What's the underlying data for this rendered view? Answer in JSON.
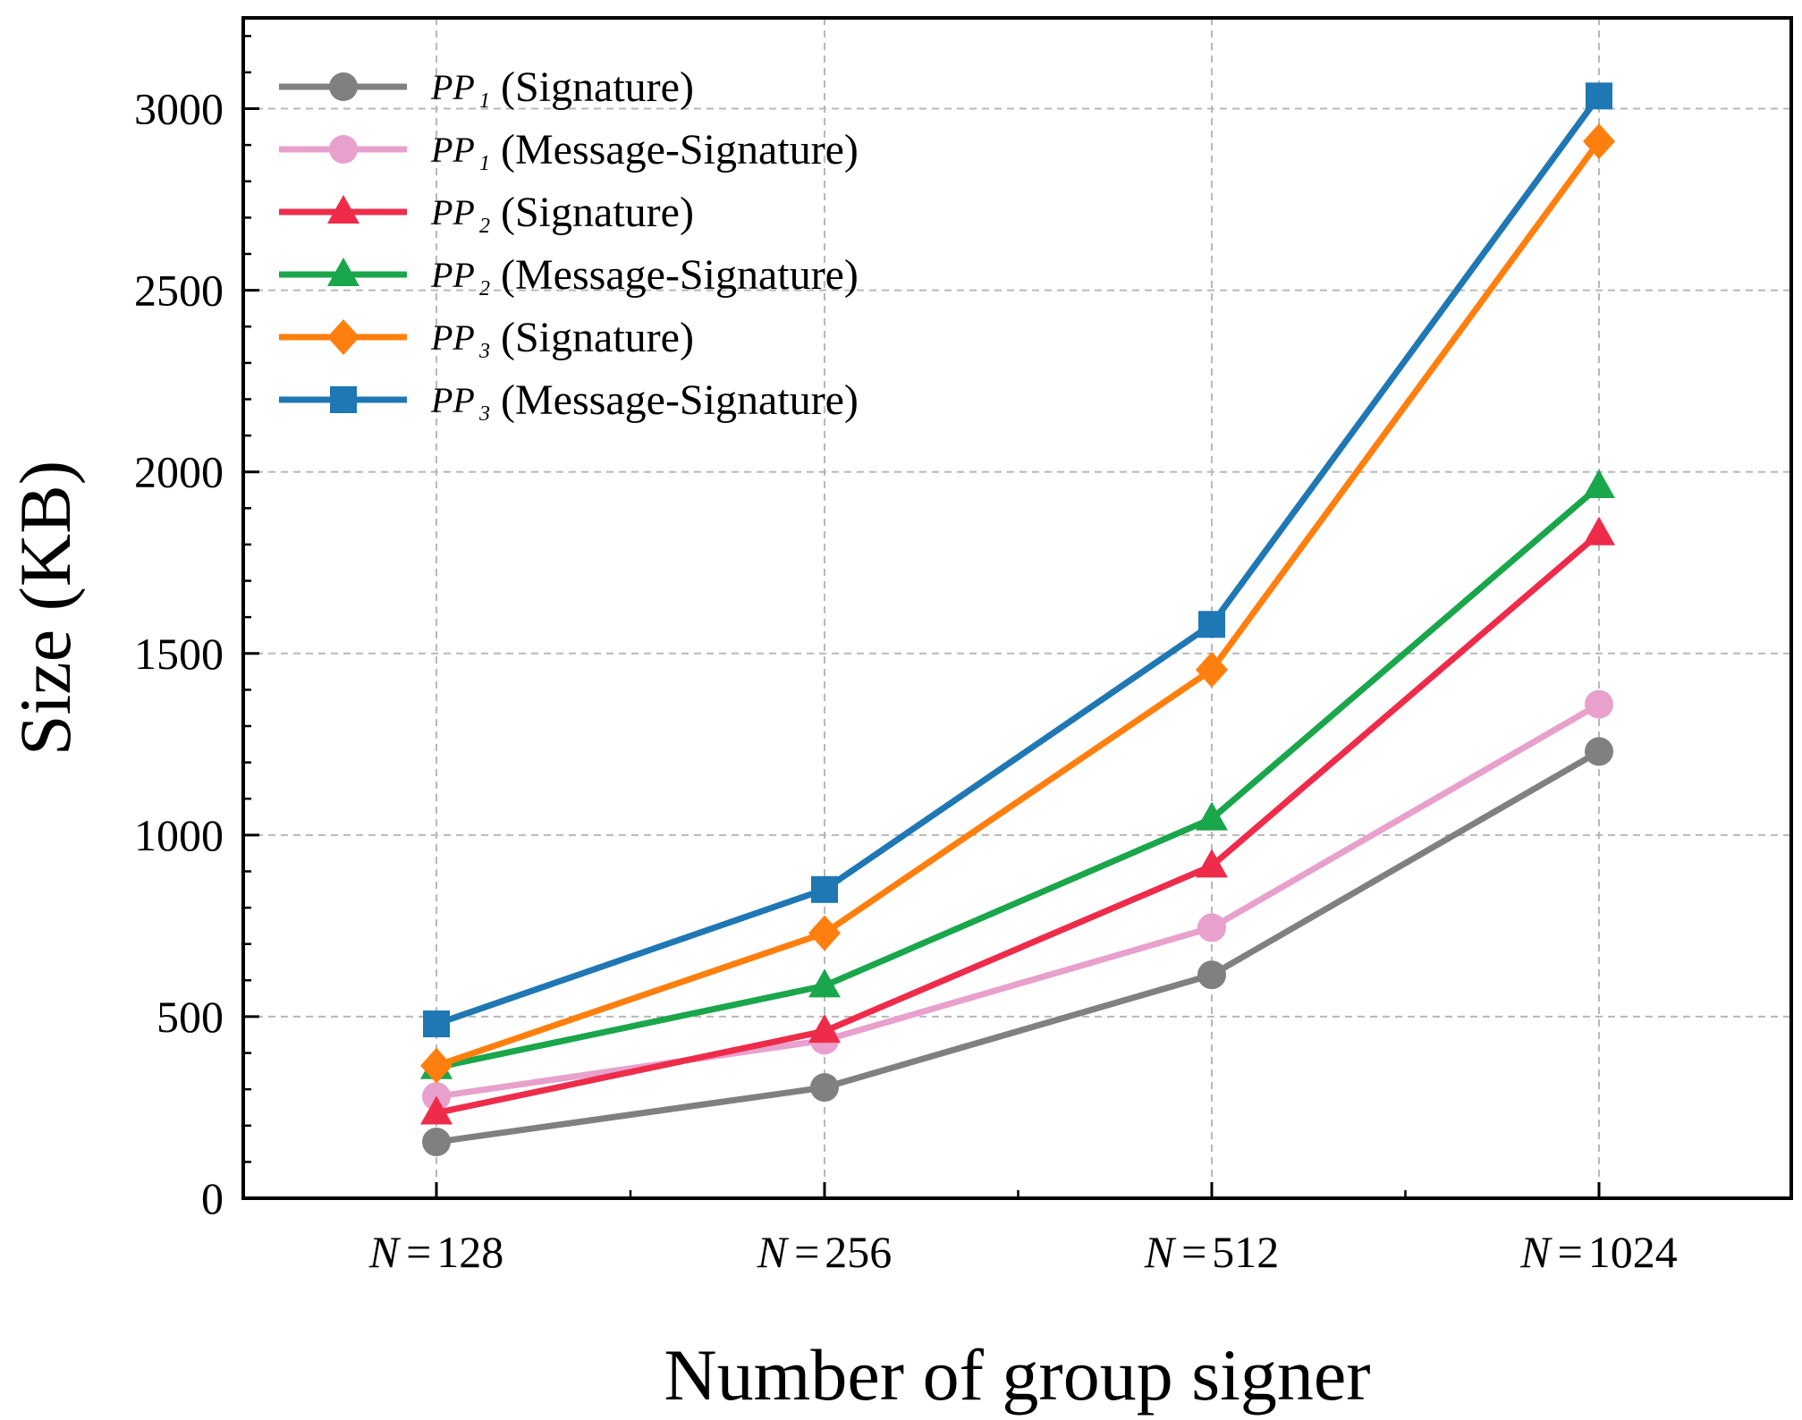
{
  "chart_data": {
    "type": "line",
    "title": "",
    "xlabel": "Number of group signer",
    "ylabel": "Size (KB)",
    "ylim": [
      0,
      3250
    ],
    "yticks": [
      0,
      500,
      1000,
      1500,
      2000,
      2500,
      3000
    ],
    "grid": true,
    "legend_position": "top-left",
    "categories": [
      {
        "var": "N",
        "eq": "=",
        "num": "128"
      },
      {
        "var": "N",
        "eq": "=",
        "num": "256"
      },
      {
        "var": "N",
        "eq": "=",
        "num": "512"
      },
      {
        "var": "N",
        "eq": "=",
        "num": "1024"
      }
    ],
    "series": [
      {
        "name": "PP1 (Signature)",
        "sym": "PP",
        "sub": "1",
        "text": "(Signature)",
        "color": "#808080",
        "marker": "circle",
        "values": [
          155,
          305,
          615,
          1230
        ]
      },
      {
        "name": "PP1 (Message-Signature)",
        "sym": "PP",
        "sub": "1",
        "text": "(Message-Signature)",
        "color": "#e8a0cc",
        "marker": "circle",
        "values": [
          280,
          435,
          745,
          1360
        ]
      },
      {
        "name": "PP2 (Signature)",
        "sym": "PP",
        "sub": "2",
        "text": "(Signature)",
        "color": "#ee2c4a",
        "marker": "triangle",
        "values": [
          235,
          460,
          915,
          1830
        ]
      },
      {
        "name": "PP2 (Message-Signature)",
        "sym": "PP",
        "sub": "2",
        "text": "(Message-Signature)",
        "color": "#1aa64a",
        "marker": "triangle",
        "values": [
          360,
          585,
          1045,
          1960
        ]
      },
      {
        "name": "PP3 (Signature)",
        "sym": "PP",
        "sub": "3",
        "text": "(Signature)",
        "color": "#ff7f0e",
        "marker": "diamond",
        "values": [
          365,
          730,
          1455,
          2910
        ]
      },
      {
        "name": "PP3 (Message-Signature)",
        "sym": "PP",
        "sub": "3",
        "text": "(Message-Signature)",
        "color": "#1f77b4",
        "marker": "square",
        "values": [
          480,
          850,
          1580,
          3035
        ]
      }
    ]
  }
}
